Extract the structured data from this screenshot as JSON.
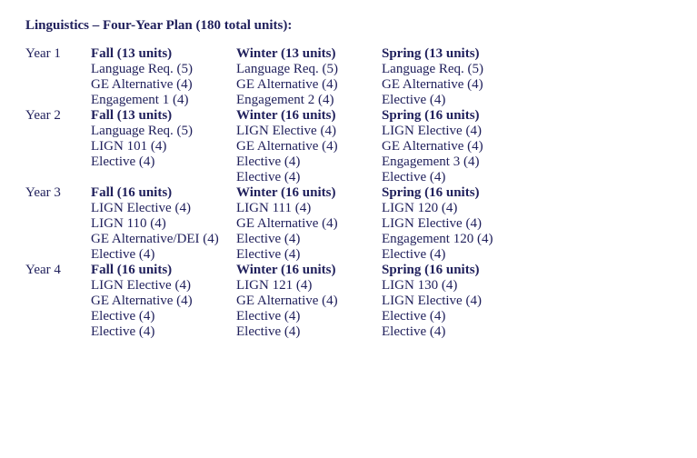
{
  "title": "Linguistics – Four-Year Plan (180 total units):",
  "colors": {
    "text": "#20205c",
    "background": "#ffffff"
  },
  "typography": {
    "family": "Times New Roman",
    "size_pt": 12
  },
  "years": [
    {
      "label": "Year 1",
      "terms": [
        {
          "heading": "Fall (13 units)",
          "courses": [
            "Language Req. (5)",
            "GE Alternative (4)",
            "Engagement 1 (4)"
          ]
        },
        {
          "heading": "Winter (13 units)",
          "courses": [
            "Language Req. (5)",
            "GE Alternative (4)",
            "Engagement 2 (4)"
          ]
        },
        {
          "heading": "Spring (13 units)",
          "courses": [
            "Language Req. (5)",
            "GE Alternative (4)",
            "Elective (4)"
          ]
        }
      ]
    },
    {
      "label": "Year 2",
      "terms": [
        {
          "heading": "Fall (13 units)",
          "courses": [
            "Language Req. (5)",
            "LIGN 101 (4)",
            "Elective (4)",
            ""
          ]
        },
        {
          "heading": "Winter (16 units)",
          "courses": [
            "LIGN Elective (4)",
            "GE Alternative (4)",
            "Elective (4)",
            "Elective (4)"
          ]
        },
        {
          "heading": "Spring (16 units)",
          "courses": [
            "LIGN Elective (4)",
            "GE Alternative (4)",
            "Engagement 3 (4)",
            "Elective (4)"
          ]
        }
      ]
    },
    {
      "label": "Year 3",
      "terms": [
        {
          "heading": "Fall (16 units)",
          "courses": [
            "LIGN Elective (4)",
            "LIGN 110 (4)",
            "GE Alternative/DEI (4)",
            "Elective (4)"
          ]
        },
        {
          "heading": "Winter (16 units)",
          "courses": [
            "LIGN 111 (4)",
            "GE Alternative (4)",
            "Elective (4)",
            "Elective (4)"
          ]
        },
        {
          "heading": "Spring (16 units)",
          "courses": [
            "LIGN 120 (4)",
            "LIGN Elective (4)",
            "Engagement 120 (4)",
            "Elective (4)"
          ]
        }
      ]
    },
    {
      "label": "Year 4",
      "terms": [
        {
          "heading": "Fall (16 units)",
          "courses": [
            "LIGN Elective (4)",
            "GE Alternative (4)",
            "Elective (4)",
            "Elective (4)"
          ]
        },
        {
          "heading": "Winter (16 units)",
          "courses": [
            "LIGN 121 (4)",
            "GE Alternative (4)",
            "Elective (4)",
            "Elective (4)"
          ]
        },
        {
          "heading": "Spring (16 units)",
          "courses": [
            "LIGN 130 (4)",
            "LIGN Elective (4)",
            "Elective (4)",
            "Elective (4)"
          ]
        }
      ]
    }
  ]
}
